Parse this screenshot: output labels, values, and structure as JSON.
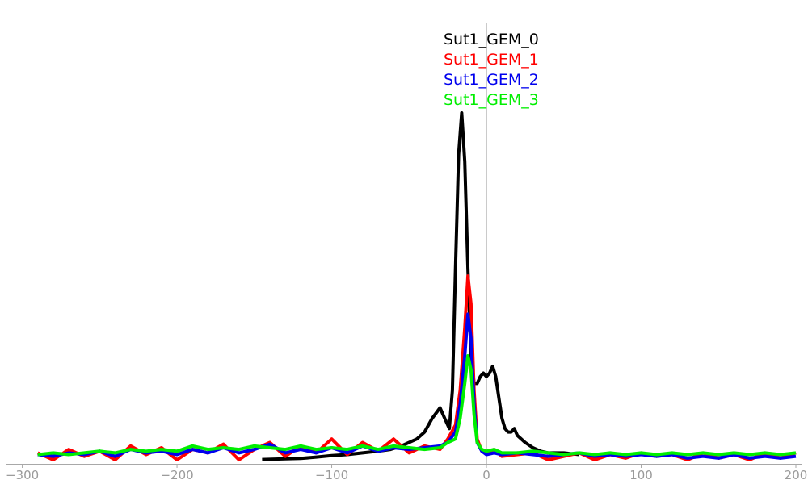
{
  "chart_data": {
    "type": "line",
    "title": "",
    "xlabel": "",
    "ylabel": "",
    "xlim": [
      -305,
      200
    ],
    "ylim": [
      0,
      1.0
    ],
    "grid": false,
    "zero_line": true,
    "legend_placement": "top-center",
    "x_ticks": [
      -300,
      -200,
      -100,
      0,
      100,
      200
    ],
    "x_tick_labels": [
      "−300",
      "−200",
      "−100",
      "0",
      "100",
      "200"
    ],
    "series": [
      {
        "name": "Sut1_GEM_0",
        "color": "#000000",
        "x": [
          -145,
          -130,
          -120,
          -110,
          -100,
          -90,
          -80,
          -70,
          -62,
          -55,
          -50,
          -45,
          -40,
          -35,
          -30,
          -27,
          -24,
          -22,
          -20,
          -18,
          -16,
          -14,
          -12,
          -10,
          -8,
          -6,
          -4,
          -2,
          0,
          2,
          4,
          6,
          8,
          10,
          12,
          14,
          16,
          18,
          20,
          25,
          30,
          35,
          40,
          50,
          60
        ],
        "y": [
          0.001,
          0.003,
          0.004,
          0.008,
          0.012,
          0.015,
          0.02,
          0.025,
          0.03,
          0.04,
          0.05,
          0.06,
          0.08,
          0.12,
          0.15,
          0.12,
          0.09,
          0.2,
          0.55,
          0.88,
          1.0,
          0.86,
          0.55,
          0.3,
          0.22,
          0.22,
          0.24,
          0.25,
          0.24,
          0.25,
          0.27,
          0.24,
          0.18,
          0.12,
          0.09,
          0.08,
          0.08,
          0.09,
          0.07,
          0.05,
          0.035,
          0.025,
          0.02,
          0.02,
          0.015
        ]
      },
      {
        "name": "Sut1_GEM_1",
        "color": "#ff0000",
        "x": [
          -290,
          -280,
          -270,
          -260,
          -250,
          -240,
          -230,
          -220,
          -210,
          -200,
          -190,
          -180,
          -170,
          -160,
          -150,
          -140,
          -130,
          -120,
          -110,
          -100,
          -90,
          -80,
          -70,
          -60,
          -50,
          -40,
          -30,
          -25,
          -20,
          -17,
          -14,
          -12,
          -10,
          -8,
          -6,
          -3,
          0,
          5,
          10,
          20,
          30,
          40,
          50,
          60,
          70,
          80,
          90,
          100,
          110,
          120,
          130,
          140,
          150,
          160,
          170,
          180,
          190,
          200
        ],
        "y": [
          0.02,
          0.0,
          0.03,
          0.01,
          0.025,
          0.0,
          0.04,
          0.015,
          0.035,
          0.0,
          0.03,
          0.02,
          0.045,
          0.0,
          0.03,
          0.05,
          0.01,
          0.04,
          0.02,
          0.06,
          0.015,
          0.05,
          0.025,
          0.06,
          0.02,
          0.04,
          0.03,
          0.06,
          0.1,
          0.2,
          0.38,
          0.53,
          0.45,
          0.2,
          0.06,
          0.025,
          0.02,
          0.03,
          0.01,
          0.015,
          0.02,
          0.0,
          0.01,
          0.02,
          0.0,
          0.015,
          0.005,
          0.02,
          0.01,
          0.015,
          0.0,
          0.02,
          0.005,
          0.015,
          0.0,
          0.02,
          0.005,
          0.02
        ]
      },
      {
        "name": "Sut1_GEM_2",
        "color": "#0000ee",
        "x": [
          -290,
          -280,
          -270,
          -260,
          -250,
          -240,
          -230,
          -220,
          -210,
          -200,
          -190,
          -180,
          -170,
          -160,
          -150,
          -140,
          -130,
          -120,
          -110,
          -100,
          -90,
          -80,
          -70,
          -60,
          -50,
          -40,
          -30,
          -25,
          -20,
          -17,
          -14,
          -12,
          -10,
          -8,
          -6,
          -3,
          0,
          5,
          10,
          20,
          30,
          40,
          50,
          60,
          70,
          80,
          90,
          100,
          110,
          120,
          130,
          140,
          150,
          160,
          170,
          180,
          190,
          200
        ],
        "y": [
          0.015,
          0.01,
          0.02,
          0.015,
          0.025,
          0.01,
          0.03,
          0.02,
          0.025,
          0.015,
          0.03,
          0.02,
          0.035,
          0.02,
          0.03,
          0.045,
          0.02,
          0.03,
          0.02,
          0.035,
          0.02,
          0.04,
          0.025,
          0.035,
          0.03,
          0.035,
          0.04,
          0.05,
          0.08,
          0.16,
          0.3,
          0.42,
          0.35,
          0.16,
          0.05,
          0.025,
          0.015,
          0.02,
          0.015,
          0.02,
          0.015,
          0.01,
          0.015,
          0.02,
          0.01,
          0.015,
          0.01,
          0.015,
          0.01,
          0.015,
          0.005,
          0.01,
          0.005,
          0.015,
          0.005,
          0.01,
          0.005,
          0.01
        ]
      },
      {
        "name": "Sut1_GEM_3",
        "color": "#00ee00",
        "x": [
          -290,
          -280,
          -270,
          -260,
          -250,
          -240,
          -230,
          -220,
          -210,
          -200,
          -190,
          -180,
          -170,
          -160,
          -150,
          -140,
          -130,
          -120,
          -110,
          -100,
          -90,
          -80,
          -70,
          -60,
          -50,
          -40,
          -30,
          -25,
          -20,
          -17,
          -14,
          -12,
          -10,
          -8,
          -6,
          -3,
          0,
          5,
          10,
          20,
          30,
          40,
          50,
          60,
          70,
          80,
          90,
          100,
          110,
          120,
          130,
          140,
          150,
          160,
          170,
          180,
          190,
          200
        ],
        "y": [
          0.015,
          0.02,
          0.015,
          0.02,
          0.025,
          0.02,
          0.03,
          0.025,
          0.03,
          0.025,
          0.04,
          0.03,
          0.035,
          0.03,
          0.04,
          0.035,
          0.03,
          0.04,
          0.03,
          0.035,
          0.03,
          0.04,
          0.03,
          0.04,
          0.035,
          0.03,
          0.035,
          0.05,
          0.06,
          0.12,
          0.22,
          0.3,
          0.26,
          0.13,
          0.05,
          0.03,
          0.025,
          0.03,
          0.02,
          0.02,
          0.025,
          0.02,
          0.015,
          0.02,
          0.015,
          0.02,
          0.015,
          0.02,
          0.015,
          0.02,
          0.015,
          0.02,
          0.015,
          0.02,
          0.015,
          0.02,
          0.015,
          0.02
        ]
      }
    ]
  }
}
